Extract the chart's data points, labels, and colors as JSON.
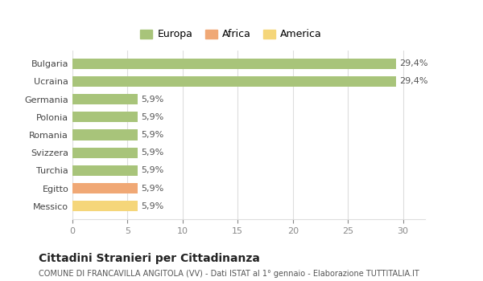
{
  "categories": [
    "Messico",
    "Egitto",
    "Turchia",
    "Svizzera",
    "Romania",
    "Polonia",
    "Germania",
    "Ucraina",
    "Bulgaria"
  ],
  "values": [
    5.9,
    5.9,
    5.9,
    5.9,
    5.9,
    5.9,
    5.9,
    29.4,
    29.4
  ],
  "colors": [
    "#f5d67a",
    "#f0a875",
    "#a8c47a",
    "#a8c47a",
    "#a8c47a",
    "#a8c47a",
    "#a8c47a",
    "#a8c47a",
    "#a8c47a"
  ],
  "labels": [
    "5,9%",
    "5,9%",
    "5,9%",
    "5,9%",
    "5,9%",
    "5,9%",
    "5,9%",
    "29,4%",
    "29,4%"
  ],
  "xlim": [
    0,
    32
  ],
  "xticks": [
    0,
    5,
    10,
    15,
    20,
    25,
    30
  ],
  "legend": [
    {
      "label": "Europa",
      "color": "#a8c47a"
    },
    {
      "label": "Africa",
      "color": "#f0a875"
    },
    {
      "label": "America",
      "color": "#f5d67a"
    }
  ],
  "title": "Cittadini Stranieri per Cittadinanza",
  "subtitle": "COMUNE DI FRANCAVILLA ANGITOLA (VV) - Dati ISTAT al 1° gennaio - Elaborazione TUTTITALIA.IT",
  "background_color": "#ffffff",
  "grid_color": "#dddddd",
  "bar_height": 0.6
}
